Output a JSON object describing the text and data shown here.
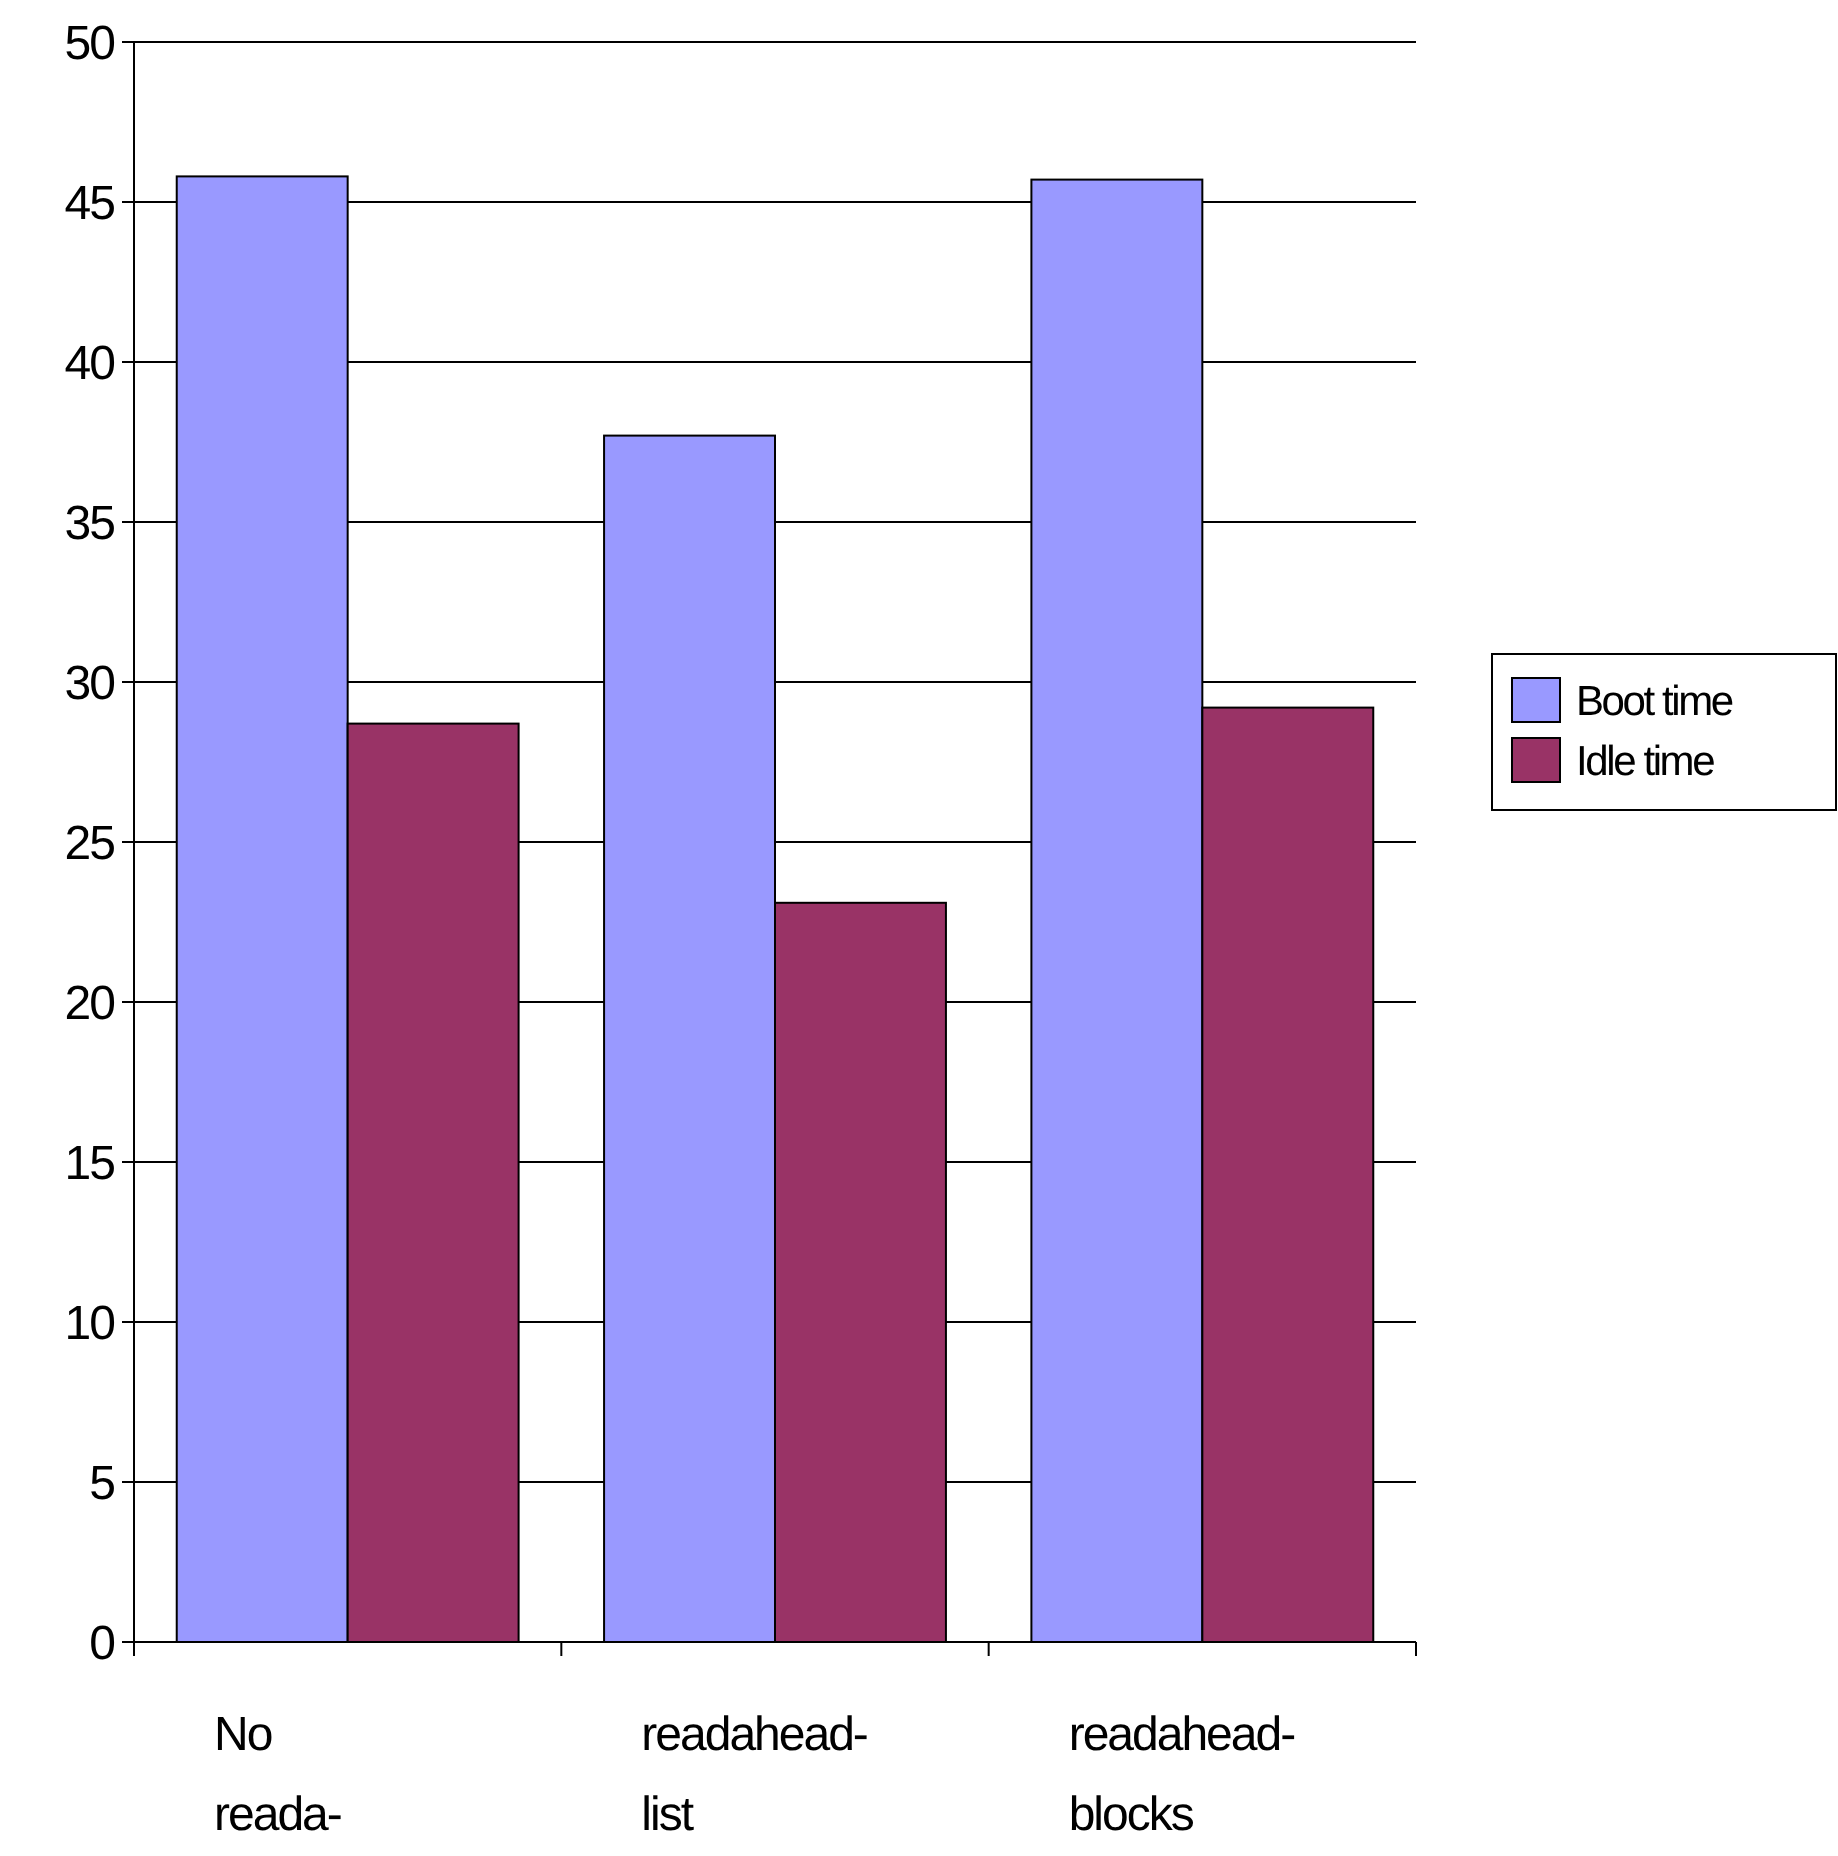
{
  "chart_data": {
    "type": "bar",
    "categories": [
      "No reada-",
      "readahead-list",
      "readahead-blocks"
    ],
    "series": [
      {
        "name": "Boot time",
        "color": "#9999ff",
        "values": [
          45.8,
          37.7,
          45.7
        ]
      },
      {
        "name": "Idle time",
        "color": "#993366",
        "values": [
          28.7,
          23.1,
          29.2
        ]
      }
    ],
    "ylim": [
      0,
      50
    ],
    "yticks": [
      0,
      5,
      10,
      15,
      20,
      25,
      30,
      35,
      40,
      45,
      50
    ],
    "grid": "y",
    "legend": "right"
  }
}
